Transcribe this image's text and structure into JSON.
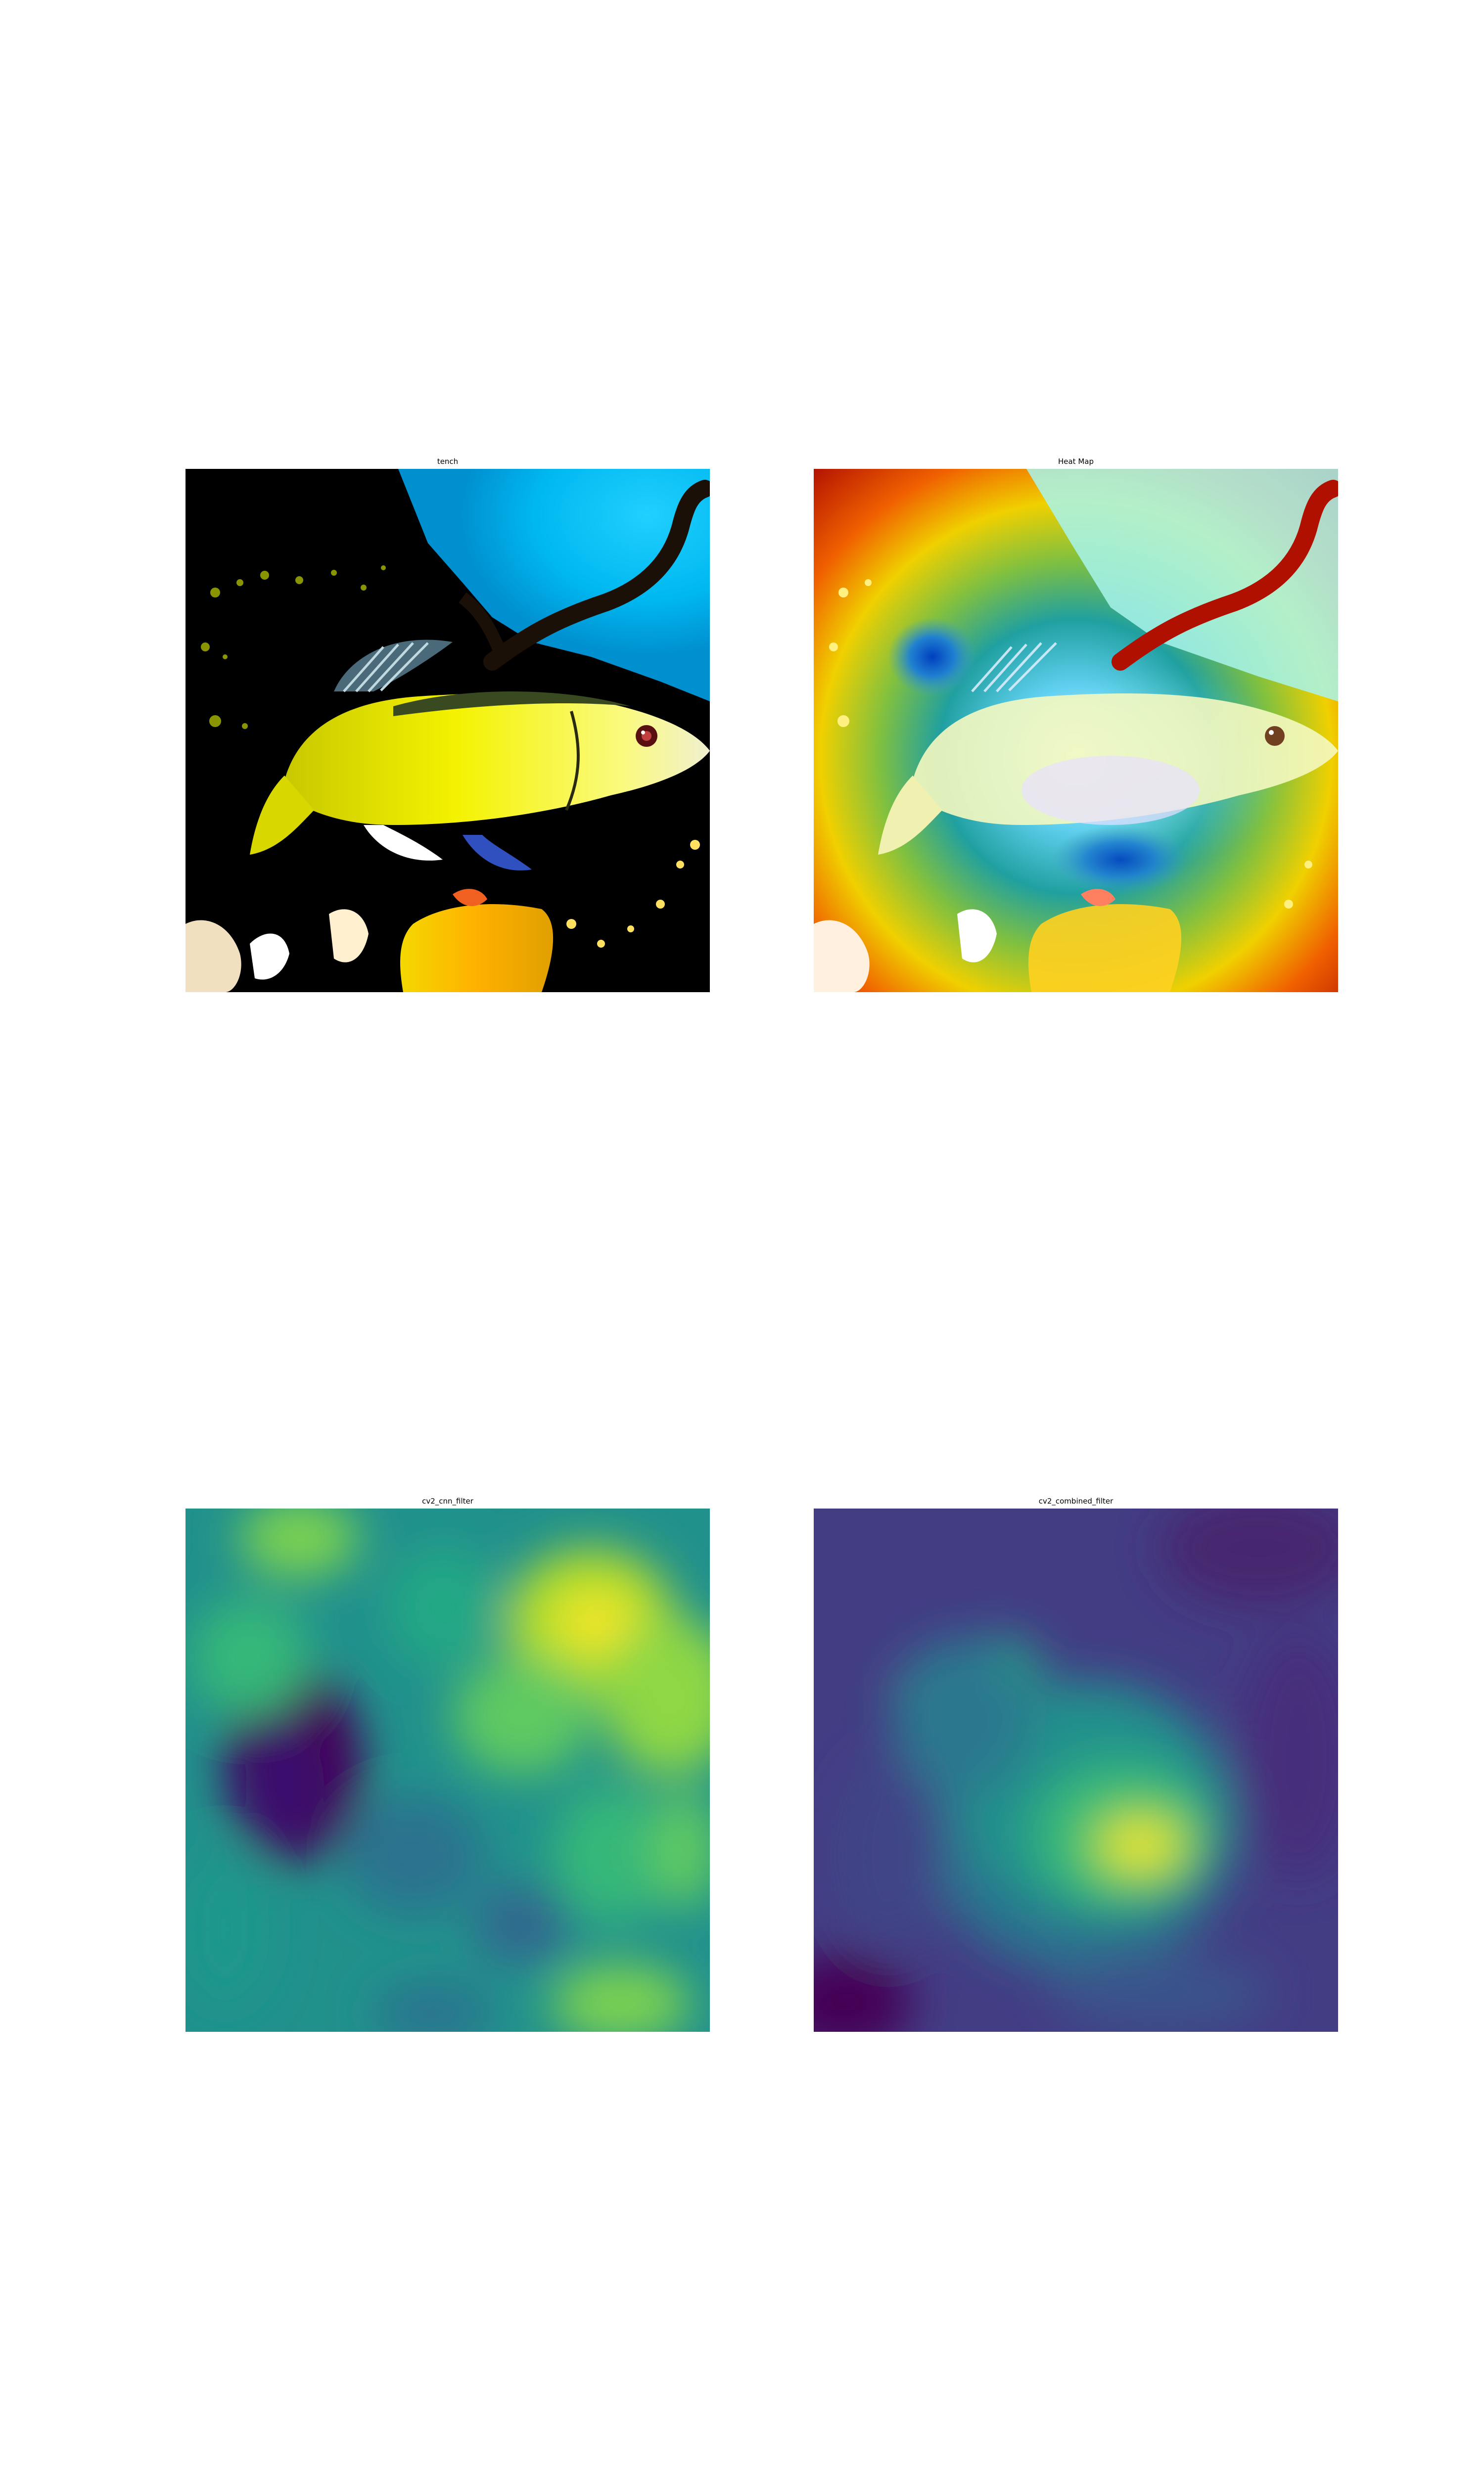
{
  "figure": {
    "panels": [
      {
        "id": "p1",
        "title": "tench",
        "kind": "input-image",
        "subject": "fish"
      },
      {
        "id": "p2",
        "title": "Heat Map",
        "kind": "heatmap-overlay",
        "colormap": "jet"
      },
      {
        "id": "p3",
        "title": "cv2_cnn_filter",
        "kind": "filter-map",
        "colormap": "viridis"
      },
      {
        "id": "p4",
        "title": "cv2_combined_filter",
        "kind": "filter-map",
        "colormap": "viridis"
      }
    ]
  },
  "colors": {
    "background": "#ffffff",
    "fish_body": "#f0f000",
    "water": "#00c8ff",
    "jet_red": "#b01000",
    "viridis_dark": "#440154",
    "viridis_mid": "#21918c",
    "viridis_bright": "#fde725"
  }
}
